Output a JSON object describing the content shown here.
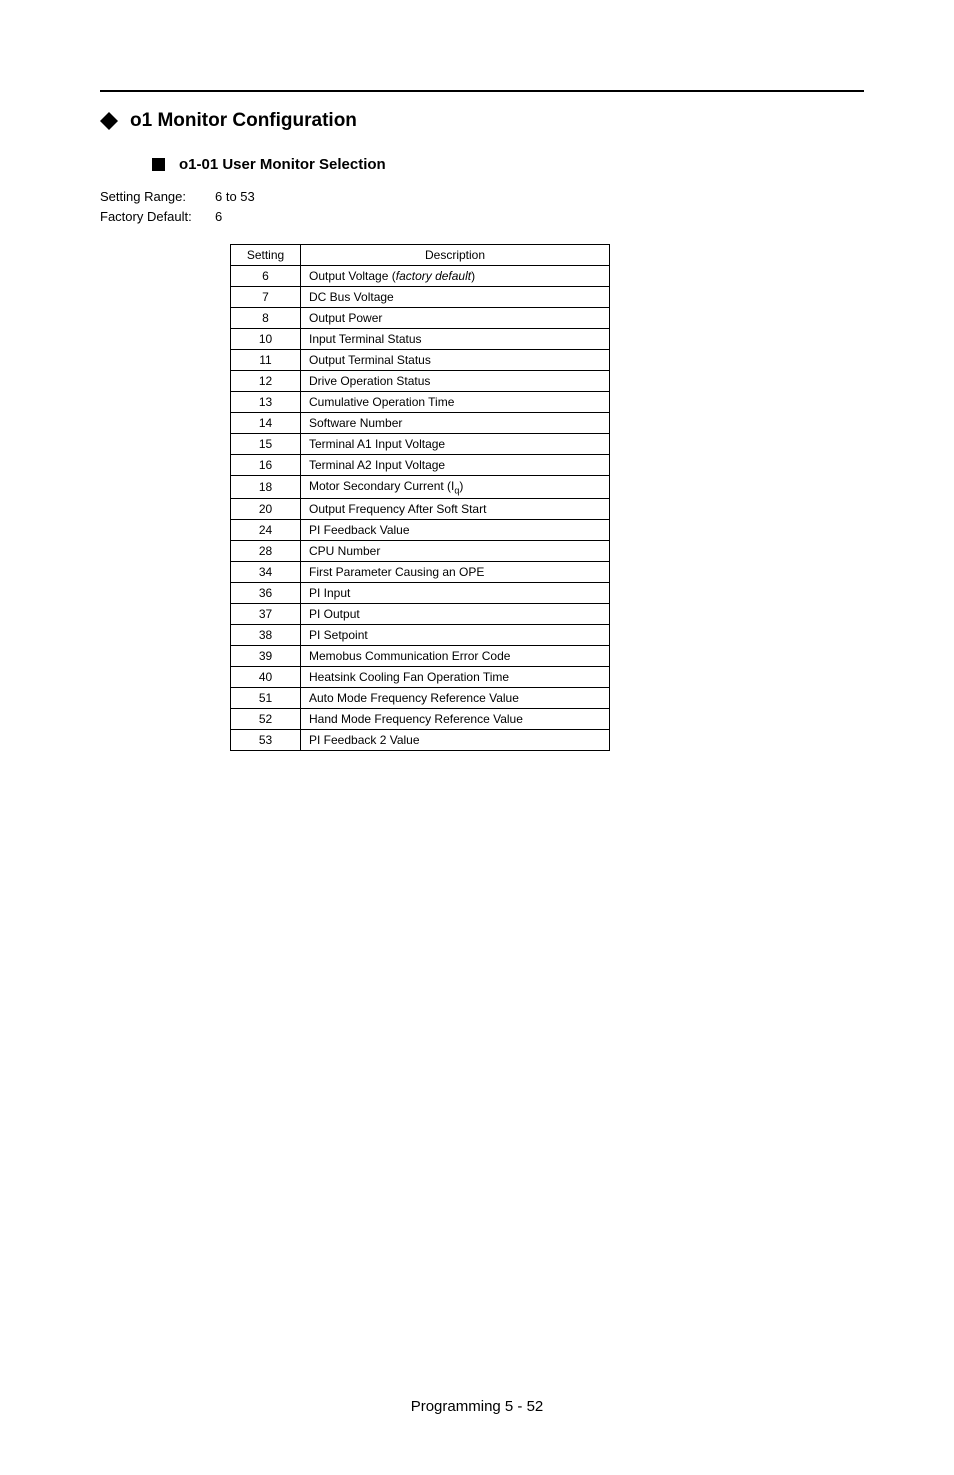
{
  "section": {
    "title": "o1 Monitor Configuration"
  },
  "subsection": {
    "title": "o1-01  User Monitor Selection"
  },
  "params": {
    "setting_range_label": "Setting Range:",
    "setting_range_value": "6 to 53",
    "factory_default_label": "Factory Default:",
    "factory_default_value": "6"
  },
  "table": {
    "headers": {
      "setting": "Setting",
      "description": "Description"
    },
    "rows": [
      {
        "setting": "6",
        "desc_prefix": "Output Voltage (",
        "desc_italic": "factory default",
        "desc_suffix": ")"
      },
      {
        "setting": "7",
        "desc": "DC Bus Voltage"
      },
      {
        "setting": "8",
        "desc": "Output Power"
      },
      {
        "setting": "10",
        "desc": "Input Terminal Status"
      },
      {
        "setting": "11",
        "desc": "Output Terminal Status"
      },
      {
        "setting": "12",
        "desc": "Drive Operation Status"
      },
      {
        "setting": "13",
        "desc": "Cumulative Operation Time"
      },
      {
        "setting": "14",
        "desc": "Software Number"
      },
      {
        "setting": "15",
        "desc": "Terminal A1 Input Voltage"
      },
      {
        "setting": "16",
        "desc": "Terminal A2 Input Voltage"
      },
      {
        "setting": "18",
        "desc_prefix": "Motor Secondary Current (I",
        "desc_sub": "q",
        "desc_suffix": ")"
      },
      {
        "setting": "20",
        "desc": "Output Frequency After Soft Start"
      },
      {
        "setting": "24",
        "desc": "PI Feedback Value"
      },
      {
        "setting": "28",
        "desc": "CPU Number"
      },
      {
        "setting": "34",
        "desc": "First Parameter Causing an OPE"
      },
      {
        "setting": "36",
        "desc": "PI Input"
      },
      {
        "setting": "37",
        "desc": "PI Output"
      },
      {
        "setting": "38",
        "desc": "PI Setpoint"
      },
      {
        "setting": "39",
        "desc": "Memobus Communication Error Code"
      },
      {
        "setting": "40",
        "desc": "Heatsink Cooling Fan Operation Time"
      },
      {
        "setting": "51",
        "desc": "Auto Mode Frequency Reference Value"
      },
      {
        "setting": "52",
        "desc": "Hand Mode Frequency Reference Value"
      },
      {
        "setting": "53",
        "desc": "PI Feedback 2 Value"
      }
    ]
  },
  "footer": {
    "text": "Programming  5 - 52"
  }
}
